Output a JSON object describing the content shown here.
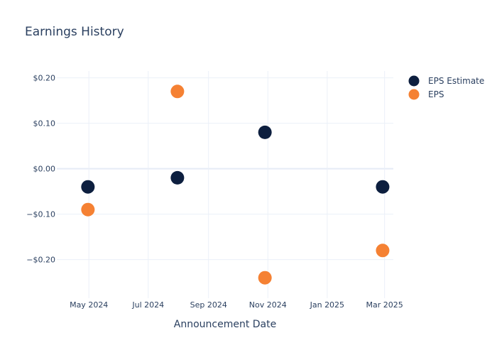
{
  "chart_data": {
    "type": "scatter",
    "title": "Earnings History",
    "xlabel": "Announcement Date",
    "ylabel": "",
    "x_ticks": [
      {
        "date": "2024-05-01",
        "label": "May 2024"
      },
      {
        "date": "2024-07-01",
        "label": "Jul 2024"
      },
      {
        "date": "2024-09-01",
        "label": "Sep 2024"
      },
      {
        "date": "2024-11-01",
        "label": "Nov 2024"
      },
      {
        "date": "2025-01-01",
        "label": "Jan 2025"
      },
      {
        "date": "2025-03-01",
        "label": "Mar 2025"
      }
    ],
    "xlim": [
      "2024-03-29",
      "2025-03-10"
    ],
    "y_ticks": [
      {
        "value": 0.2,
        "label": "$0.20"
      },
      {
        "value": 0.1,
        "label": "$0.10"
      },
      {
        "value": 0.0,
        "label": "$0.00"
      },
      {
        "value": -0.1,
        "label": "−$0.10"
      },
      {
        "value": -0.2,
        "label": "−$0.20"
      }
    ],
    "ylim": [
      -0.285,
      0.215
    ],
    "grid": true,
    "legend_position": "top-right",
    "series": [
      {
        "name": "EPS Estimate",
        "color": "#0d1f3f",
        "points": [
          {
            "x": "2024-04-30",
            "y": -0.04
          },
          {
            "x": "2024-07-31",
            "y": -0.02
          },
          {
            "x": "2024-10-29",
            "y": 0.08
          },
          {
            "x": "2025-02-27",
            "y": -0.04
          }
        ]
      },
      {
        "name": "EPS",
        "color": "#f58133",
        "points": [
          {
            "x": "2024-04-30",
            "y": -0.09
          },
          {
            "x": "2024-07-31",
            "y": 0.17
          },
          {
            "x": "2024-10-29",
            "y": -0.24
          },
          {
            "x": "2025-02-27",
            "y": -0.18
          }
        ]
      }
    ]
  }
}
